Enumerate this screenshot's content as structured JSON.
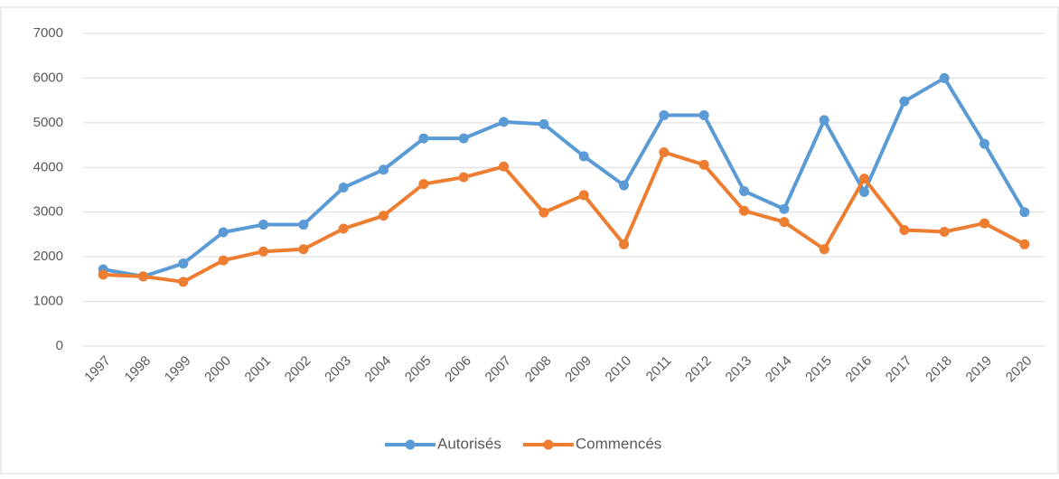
{
  "chart_data": {
    "type": "line",
    "categories": [
      "1997",
      "1998",
      "1999",
      "2000",
      "2001",
      "2002",
      "2003",
      "2004",
      "2005",
      "2006",
      "2007",
      "2008",
      "2009",
      "2010",
      "2011",
      "2012",
      "2013",
      "2014",
      "2015",
      "2016",
      "2017",
      "2018",
      "2019",
      "2020"
    ],
    "series": [
      {
        "name": "Autorisés",
        "color": "#5b9bd5",
        "values": [
          1720,
          1560,
          1850,
          2550,
          2720,
          2720,
          3550,
          3950,
          4650,
          4650,
          5020,
          4970,
          4250,
          3600,
          5170,
          5170,
          3470,
          3070,
          5060,
          3450,
          5480,
          6000,
          4530,
          3000
        ]
      },
      {
        "name": "Commencés",
        "color": "#ed7d31",
        "values": [
          1600,
          1560,
          1440,
          1920,
          2120,
          2170,
          2630,
          2920,
          3630,
          3780,
          4020,
          2990,
          3380,
          2280,
          4340,
          4060,
          3030,
          2780,
          2170,
          3750,
          2600,
          2560,
          2750,
          2280
        ]
      }
    ],
    "ylim": [
      0,
      7000
    ],
    "yticks": [
      0,
      1000,
      2000,
      3000,
      4000,
      5000,
      6000,
      7000
    ],
    "grid": true,
    "legend": "bottom"
  }
}
